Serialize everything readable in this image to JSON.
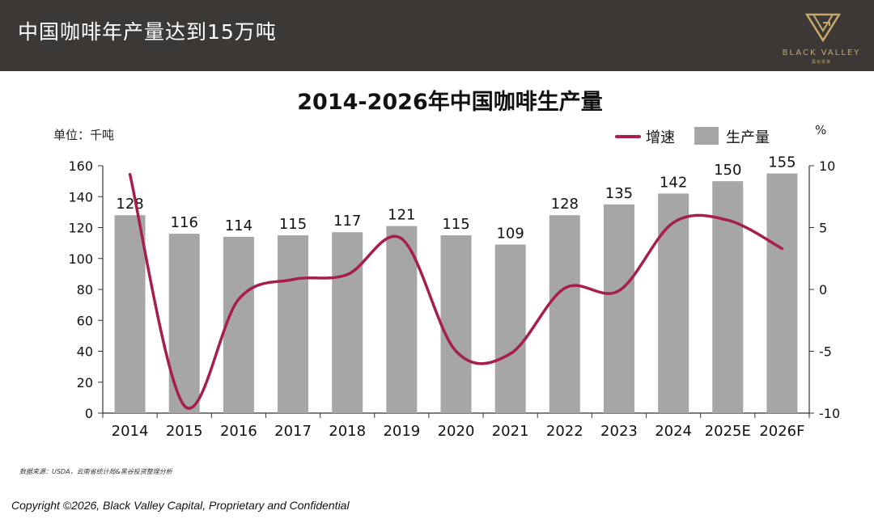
{
  "header": {
    "title": "中国咖啡年产量达到15万吨",
    "logo_text": "BLACK VALLEY",
    "logo_subtext": "黑谷投资"
  },
  "chart_data": {
    "type": "bar",
    "title": "2014-2026年中国咖啡生产量",
    "ylabel": "单位：千吨",
    "y2label": "%",
    "categories": [
      "2014",
      "2015",
      "2016",
      "2017",
      "2018",
      "2019",
      "2020",
      "2021",
      "2022",
      "2023",
      "2024",
      "2025E",
      "2026F"
    ],
    "series": [
      {
        "name": "生产量",
        "type": "bar",
        "axis": "left",
        "color": "#a6a6a6",
        "values": [
          128,
          116,
          114,
          115,
          117,
          121,
          115,
          109,
          128,
          135,
          142,
          150,
          155
        ]
      },
      {
        "name": "增速",
        "type": "line",
        "axis": "right",
        "color": "#a61e4d",
        "values": [
          9.3,
          -9.4,
          -0.8,
          0.8,
          1.2,
          4.1,
          -5.0,
          -5.2,
          0.1,
          -0.1,
          5.4,
          5.6,
          3.3
        ]
      }
    ],
    "ylim": [
      0,
      160
    ],
    "yticks": [
      0,
      20,
      40,
      60,
      80,
      100,
      120,
      140,
      160
    ],
    "y2lim": [
      -10,
      10
    ],
    "y2ticks": [
      -10,
      -5,
      0,
      5,
      10
    ],
    "legend_position": "top-right",
    "grid": false
  },
  "source": "数据来源：USDA，云南省统计局&黑谷投资整理分析",
  "copyright": "Copyright ©2026, Black Valley Capital, Proprietary and Confidential"
}
